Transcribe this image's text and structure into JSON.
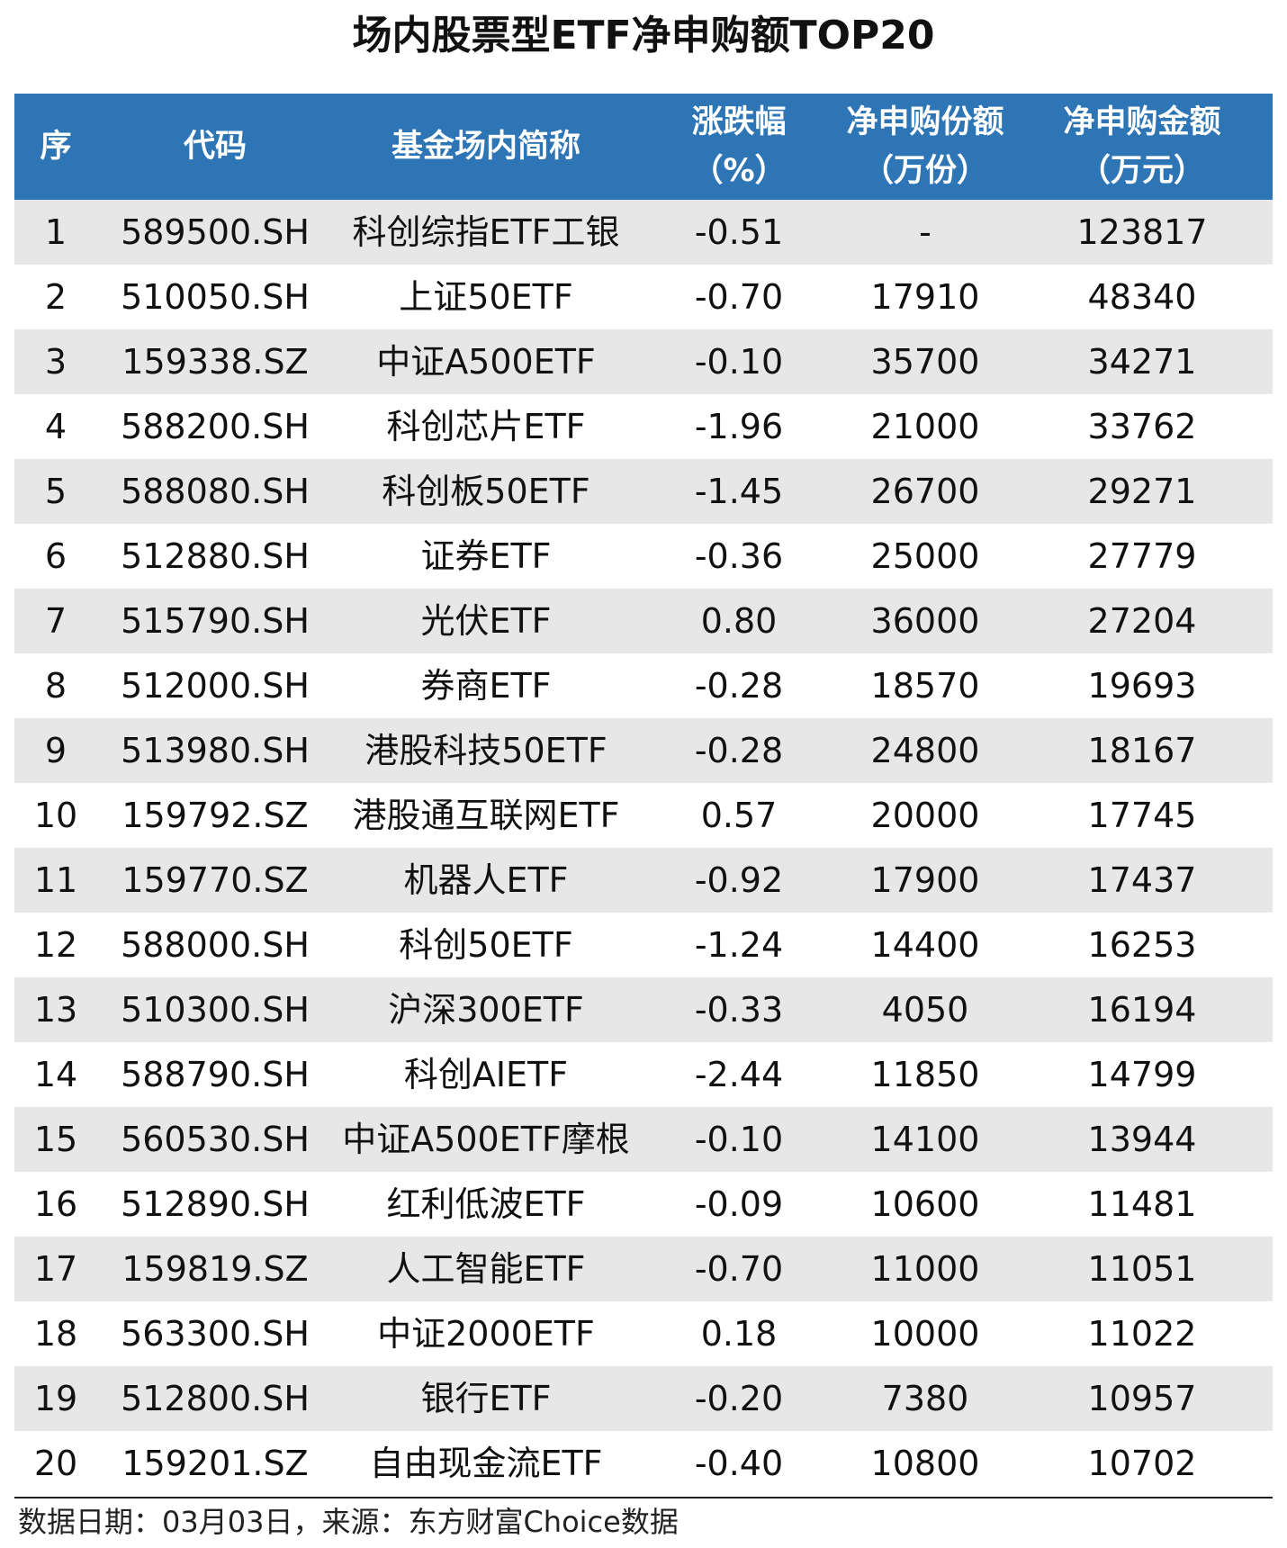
{
  "header": {
    "title": "场内股票型ETF净申购额TOP20"
  },
  "table": {
    "columns": [
      "序",
      "代码",
      "基金场内简称",
      "涨跌幅\n（%）",
      "净申购份额\n（万份）",
      "净申购金额\n（万元）"
    ],
    "rows": [
      [
        "1",
        "589500.SH",
        "科创综指ETF工银",
        "-0.51",
        "-",
        "123817"
      ],
      [
        "2",
        "510050.SH",
        "上证50ETF",
        "-0.70",
        "17910",
        "48340"
      ],
      [
        "3",
        "159338.SZ",
        "中证A500ETF",
        "-0.10",
        "35700",
        "34271"
      ],
      [
        "4",
        "588200.SH",
        "科创芯片ETF",
        "-1.96",
        "21000",
        "33762"
      ],
      [
        "5",
        "588080.SH",
        "科创板50ETF",
        "-1.45",
        "26700",
        "29271"
      ],
      [
        "6",
        "512880.SH",
        "证券ETF",
        "-0.36",
        "25000",
        "27779"
      ],
      [
        "7",
        "515790.SH",
        "光伏ETF",
        "0.80",
        "36000",
        "27204"
      ],
      [
        "8",
        "512000.SH",
        "券商ETF",
        "-0.28",
        "18570",
        "19693"
      ],
      [
        "9",
        "513980.SH",
        "港股科技50ETF",
        "-0.28",
        "24800",
        "18167"
      ],
      [
        "10",
        "159792.SZ",
        "港股通互联网ETF",
        "0.57",
        "20000",
        "17745"
      ],
      [
        "11",
        "159770.SZ",
        "机器人ETF",
        "-0.92",
        "17900",
        "17437"
      ],
      [
        "12",
        "588000.SH",
        "科创50ETF",
        "-1.24",
        "14400",
        "16253"
      ],
      [
        "13",
        "510300.SH",
        "沪深300ETF",
        "-0.33",
        "4050",
        "16194"
      ],
      [
        "14",
        "588790.SH",
        "科创AIETF",
        "-2.44",
        "11850",
        "14799"
      ],
      [
        "15",
        "560530.SH",
        "中证A500ETF摩根",
        "-0.10",
        "14100",
        "13944"
      ],
      [
        "16",
        "512890.SH",
        "红利低波ETF",
        "-0.09",
        "10600",
        "11481"
      ],
      [
        "17",
        "159819.SZ",
        "人工智能ETF",
        "-0.70",
        "11000",
        "11051"
      ],
      [
        "18",
        "563300.SH",
        "中证2000ETF",
        "0.18",
        "10000",
        "11022"
      ],
      [
        "19",
        "512800.SH",
        "银行ETF",
        "-0.20",
        "7380",
        "10957"
      ],
      [
        "20",
        "159201.SZ",
        "自由现金流ETF",
        "-0.40",
        "10800",
        "10702"
      ]
    ]
  },
  "footer": {
    "note": "数据日期：03月03日，来源：东方财富Choice数据"
  }
}
